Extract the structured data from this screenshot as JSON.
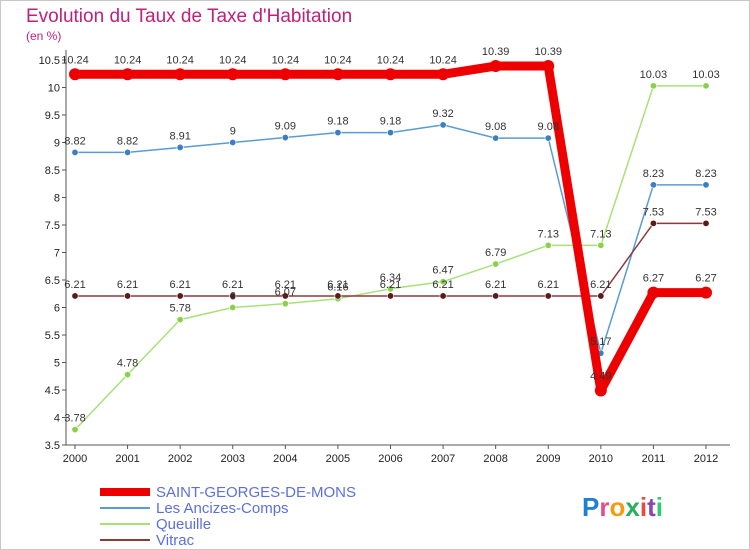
{
  "header": {
    "title": "Evolution du Taux de Taxe d'Habitation",
    "subtitle": "(en %)"
  },
  "logo": {
    "letters": [
      {
        "ch": "P",
        "color": "#1f7fd6"
      },
      {
        "ch": "r",
        "color": "#e74c8f"
      },
      {
        "ch": "o",
        "color": "#f39c12"
      },
      {
        "ch": "x",
        "color": "#27ae60"
      },
      {
        "ch": "i",
        "color": "#e74c3c"
      },
      {
        "ch": "t",
        "color": "#8e44ad"
      },
      {
        "ch": "i",
        "color": "#2ecc71"
      }
    ]
  },
  "chart_data": {
    "type": "line",
    "title": "Evolution du Taux de Taxe d'Habitation",
    "subtitle": "(en %)",
    "xlabel": "",
    "ylabel": "",
    "ylim": [
      3.5,
      10.5
    ],
    "yticks": [
      "3.5",
      "4",
      "4.5",
      "5",
      "5.5",
      "6",
      "6.5",
      "7",
      "7.5",
      "8",
      "8.5",
      "9",
      "9.5",
      "10",
      "10.5"
    ],
    "yticks_values": [
      3.5,
      4,
      4.5,
      5,
      5.5,
      6,
      6.5,
      7,
      7.5,
      8,
      8.5,
      9,
      9.5,
      10,
      10.5
    ],
    "categories": [
      "2000",
      "2001",
      "2002",
      "2003",
      "2004",
      "2005",
      "2006",
      "2007",
      "2008",
      "2009",
      "2010",
      "2011",
      "2012"
    ],
    "legend_position": "bottom-left",
    "series": [
      {
        "name": "SAINT-GEORGES-DE-MONS",
        "color": "#ee0000",
        "legend_color": "#5b6fe0",
        "bold": true,
        "values": [
          10.24,
          10.24,
          10.24,
          10.24,
          10.24,
          10.24,
          10.24,
          10.24,
          10.39,
          10.39,
          4.49,
          6.27,
          6.27
        ],
        "labels": [
          "10.24",
          "10.24",
          "10.24",
          "10.24",
          "10.24",
          "10.24",
          "10.24",
          "10.24",
          "10.39",
          "10.39",
          "4.49",
          "6.27",
          "6.27"
        ]
      },
      {
        "name": "Les Ancizes-Comps",
        "color": "#5b9bd5",
        "marker": "#3a7fc4",
        "legend_color": "#5b6fe0",
        "values": [
          8.82,
          8.82,
          8.91,
          9,
          9.09,
          9.18,
          9.18,
          9.32,
          9.08,
          9.08,
          5.17,
          8.23,
          8.23
        ],
        "labels": [
          "8.82",
          "8.82",
          "8.91",
          "9",
          "9.09",
          "9.18",
          "9.18",
          "9.32",
          "9.08",
          "9.08",
          "5.17",
          "8.23",
          "8.23"
        ]
      },
      {
        "name": "Queuille",
        "color": "#a9e07a",
        "marker": "#8ad04a",
        "legend_color": "#5b6fe0",
        "values": [
          3.78,
          4.78,
          5.78,
          6,
          6.07,
          6.16,
          6.34,
          6.47,
          6.79,
          7.13,
          7.13,
          10.03,
          10.03
        ],
        "labels": [
          "3.78",
          "4.78",
          "5.78",
          "6",
          "6.07",
          "6.16",
          "6.34",
          "6.47",
          "6.79",
          "7.13",
          "7.13",
          "10.03",
          "10.03"
        ]
      },
      {
        "name": "Vitrac",
        "color": "#8b3a3a",
        "marker": "#5a1a1a",
        "legend_color": "#5b6fe0",
        "values": [
          6.21,
          6.21,
          6.21,
          6.21,
          6.21,
          6.21,
          6.21,
          6.21,
          6.21,
          6.21,
          6.21,
          7.53,
          7.53
        ],
        "labels": [
          "6.21",
          "6.21",
          "6.21",
          "6.21",
          "6.21",
          "6.21",
          "6.21",
          "6.21",
          "6.21",
          "6.21",
          "6.21",
          "7.53",
          "7.53"
        ]
      }
    ]
  }
}
